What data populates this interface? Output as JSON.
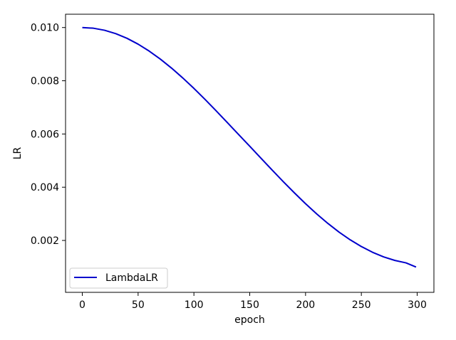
{
  "chart_data": {
    "type": "line",
    "title": "",
    "xlabel": "epoch",
    "ylabel": "LR",
    "xlim": [
      -15,
      315
    ],
    "ylim": [
      5e-05,
      0.0105
    ],
    "xticks": [
      0,
      50,
      100,
      150,
      200,
      250,
      300
    ],
    "yticks": [
      0.002,
      0.004,
      0.006,
      0.008,
      0.01
    ],
    "ytick_format": "0.000",
    "grid": false,
    "legend": {
      "position": "lower-left",
      "entries": [
        "LambdaLR"
      ]
    },
    "series": [
      {
        "name": "LambdaLR",
        "color": "#0000cc",
        "x": [
          0,
          10,
          20,
          30,
          40,
          50,
          60,
          70,
          80,
          90,
          100,
          110,
          120,
          130,
          140,
          150,
          160,
          170,
          180,
          190,
          200,
          210,
          220,
          230,
          240,
          250,
          260,
          270,
          280,
          290,
          299
        ],
        "y": [
          0.01,
          0.009974,
          0.009897,
          0.009771,
          0.009596,
          0.009376,
          0.009113,
          0.008811,
          0.008474,
          0.008106,
          0.007713,
          0.007298,
          0.006868,
          0.006427,
          0.005983,
          0.005539,
          0.005093,
          0.004649,
          0.004212,
          0.003788,
          0.003381,
          0.002997,
          0.00264,
          0.002314,
          0.002024,
          0.001771,
          0.001556,
          0.001382,
          0.001249,
          0.001158,
          0.001
        ]
      }
    ]
  }
}
